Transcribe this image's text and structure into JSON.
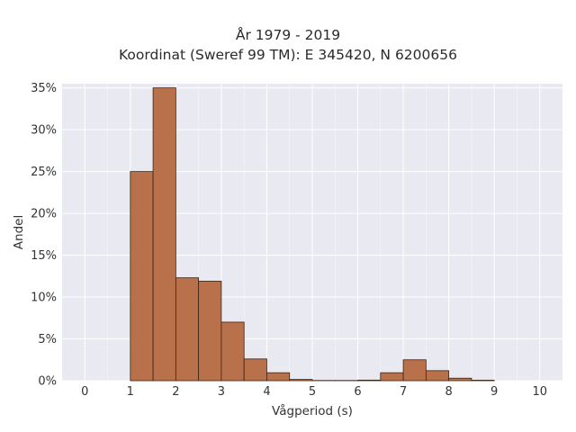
{
  "chart_data": {
    "type": "bar",
    "title_lines": [
      "År 1979 - 2019",
      "Koordinat (Sweref 99 TM): E 345420, N 6200656"
    ],
    "xlabel": "Vågperiod (s)",
    "ylabel": "Andel",
    "xlim": [
      -0.5,
      10.5
    ],
    "ylim": [
      0,
      0.355
    ],
    "x_ticks": [
      0,
      1,
      2,
      3,
      4,
      5,
      6,
      7,
      8,
      9,
      10
    ],
    "x_tick_labels": [
      "0",
      "1",
      "2",
      "3",
      "4",
      "5",
      "6",
      "7",
      "8",
      "9",
      "10"
    ],
    "y_ticks": [
      0,
      0.05,
      0.1,
      0.15,
      0.2,
      0.25,
      0.3,
      0.35
    ],
    "y_tick_labels": [
      "0%",
      "5%",
      "10%",
      "15%",
      "20%",
      "25%",
      "30%",
      "35%"
    ],
    "bin_width": 0.5,
    "bins": [
      {
        "start": 1.0,
        "value": 0.25
      },
      {
        "start": 1.5,
        "value": 0.35
      },
      {
        "start": 2.0,
        "value": 0.123
      },
      {
        "start": 2.5,
        "value": 0.119
      },
      {
        "start": 3.0,
        "value": 0.07
      },
      {
        "start": 3.5,
        "value": 0.026
      },
      {
        "start": 4.0,
        "value": 0.0095
      },
      {
        "start": 4.5,
        "value": 0.0015
      },
      {
        "start": 5.0,
        "value": 0.0003
      },
      {
        "start": 5.5,
        "value": 0.0003
      },
      {
        "start": 6.0,
        "value": 0.0007
      },
      {
        "start": 6.5,
        "value": 0.0095
      },
      {
        "start": 7.0,
        "value": 0.025
      },
      {
        "start": 7.5,
        "value": 0.012
      },
      {
        "start": 8.0,
        "value": 0.003
      },
      {
        "start": 8.5,
        "value": 0.0006
      }
    ],
    "bar_color": "#b8714a",
    "bar_edge_color": "#3a2418",
    "plot_background": "#e9e9f1",
    "grid": true,
    "grid_color": "#ffffff"
  }
}
